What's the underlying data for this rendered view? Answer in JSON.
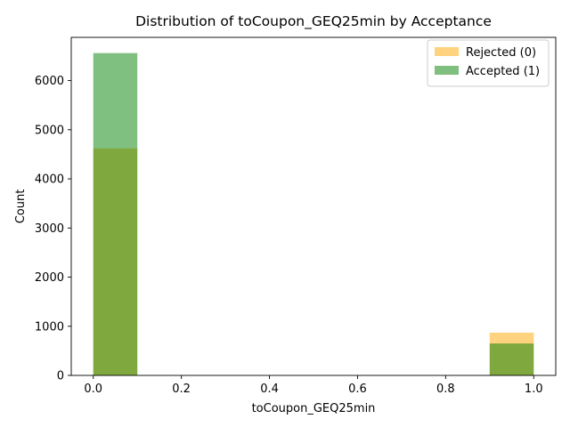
{
  "chart_data": {
    "type": "bar",
    "title": "Distribution of toCoupon_GEQ25min by Acceptance",
    "xlabel": "toCoupon_GEQ25min",
    "ylabel": "Count",
    "xlim": [
      -0.05,
      1.05
    ],
    "ylim": [
      0,
      6880
    ],
    "xticks": [
      "0.0",
      "0.2",
      "0.4",
      "0.6",
      "0.8",
      "1.0"
    ],
    "yticks": [
      "0",
      "1000",
      "2000",
      "3000",
      "4000",
      "5000",
      "6000"
    ],
    "legend_position": "top-right",
    "bin_edges": [
      0.0,
      0.1,
      0.2,
      0.3,
      0.4,
      0.5,
      0.6,
      0.7,
      0.8,
      0.9,
      1.0
    ],
    "series": [
      {
        "name": "Rejected (0)",
        "color": "#ffa500",
        "opacity": 0.5,
        "values": [
          4620,
          0,
          0,
          0,
          0,
          0,
          0,
          0,
          0,
          870
        ]
      },
      {
        "name": "Accepted (1)",
        "color": "#008000",
        "opacity": 0.5,
        "values": [
          6560,
          0,
          0,
          0,
          0,
          0,
          0,
          0,
          0,
          650
        ]
      }
    ]
  }
}
